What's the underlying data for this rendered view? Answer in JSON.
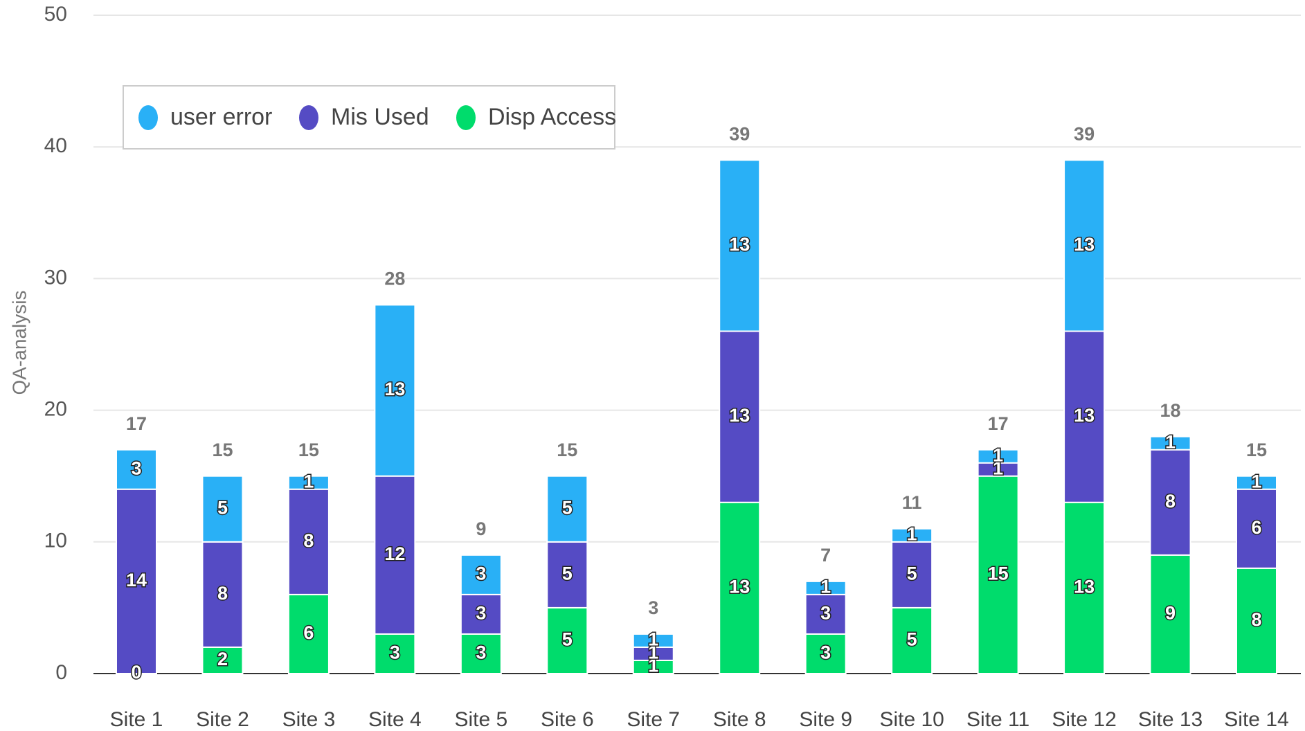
{
  "chart_data": {
    "type": "stacked_bar",
    "y_label": "QA-analysis",
    "categories": [
      "Site 1",
      "Site 2",
      "Site 3",
      "Site 4",
      "Site 5",
      "Site 6",
      "Site 7",
      "Site 8",
      "Site 9",
      "Site 10",
      "Site 11",
      "Site 12",
      "Site 13",
      "Site 14"
    ],
    "series": [
      {
        "name": "user error",
        "color": "#29b0f6",
        "values": [
          3,
          5,
          1,
          13,
          3,
          5,
          1,
          13,
          1,
          1,
          1,
          13,
          1,
          1
        ]
      },
      {
        "name": "Mis Used",
        "color": "#554bc4",
        "values": [
          14,
          8,
          8,
          12,
          3,
          5,
          1,
          13,
          3,
          5,
          1,
          13,
          8,
          6
        ]
      },
      {
        "name": "Disp Access",
        "color": "#00dc6c",
        "values": [
          0,
          2,
          6,
          3,
          3,
          5,
          1,
          13,
          3,
          5,
          15,
          13,
          9,
          8
        ]
      }
    ],
    "totals": [
      17,
      15,
      15,
      28,
      9,
      15,
      3,
      39,
      7,
      11,
      17,
      39,
      18,
      15
    ],
    "ylim": [
      0,
      50
    ],
    "yticks": [
      0,
      10,
      20,
      30,
      40,
      50
    ],
    "grid": true,
    "legend": "top-left"
  }
}
